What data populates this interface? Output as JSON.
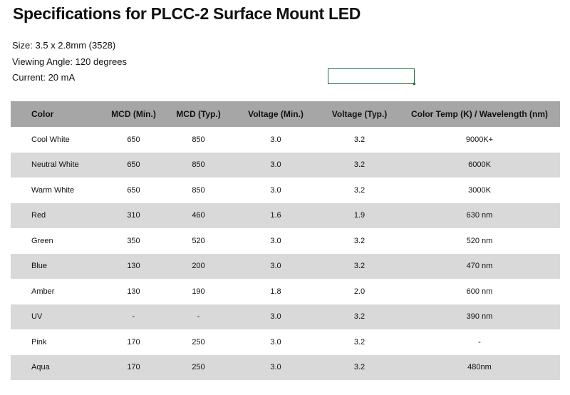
{
  "document": {
    "title": "Specifications for PLCC-2 Surface Mount LED",
    "specs": [
      "Size: 3.5 x 2.8mm (3528)",
      "Viewing Angle: 120 degrees",
      "Current: 20 mA"
    ]
  },
  "table": {
    "headers": [
      "Color",
      "MCD (Min.)",
      "MCD (Typ.)",
      "Voltage (Min.)",
      "Voltage (Typ.)",
      "Color Temp (K) / Wavelength (nm)"
    ],
    "rows": [
      [
        "Cool White",
        "650",
        "850",
        "3.0",
        "3.2",
        "9000K+"
      ],
      [
        "Neutral White",
        "650",
        "850",
        "3.0",
        "3.2",
        "6000K"
      ],
      [
        "Warm White",
        "650",
        "850",
        "3.0",
        "3.2",
        "3000K"
      ],
      [
        "Red",
        "310",
        "460",
        "1.6",
        "1.9",
        "630 nm"
      ],
      [
        "Green",
        "350",
        "520",
        "3.0",
        "3.2",
        "520 nm"
      ],
      [
        "Blue",
        "130",
        "200",
        "3.0",
        "3.2",
        "470 nm"
      ],
      [
        "Amber",
        "130",
        "190",
        "1.8",
        "2.0",
        "600 nm"
      ],
      [
        "UV",
        "-",
        "-",
        "3.0",
        "3.2",
        "390 nm"
      ],
      [
        "Pink",
        "170",
        "250",
        "3.0",
        "3.2",
        "-"
      ],
      [
        "Aqua",
        "170",
        "250",
        "3.0",
        "3.2",
        "480nm"
      ]
    ]
  },
  "colors": {
    "header_bg": "#a6a6a6",
    "stripe_bg": "#d9d9d9",
    "selection_border": "#1e6e3e"
  }
}
